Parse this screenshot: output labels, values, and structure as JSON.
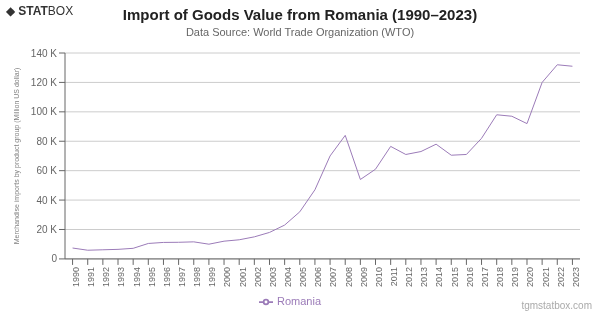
{
  "chart_data": {
    "type": "line",
    "title": "Import of Goods Value from Romania (1990–2023)",
    "subtitle": "Data Source: World Trade Organization (WTO)",
    "ylabel": "Merchandise imports by product group (Million US dollar)",
    "annotations": [
      "tgmstatbox.com",
      "◆",
      "STAT",
      "BOX"
    ],
    "x": [
      1990,
      1991,
      1992,
      1993,
      1994,
      1995,
      1996,
      1997,
      1998,
      1999,
      2000,
      2001,
      2002,
      2003,
      2004,
      2005,
      2006,
      2007,
      2008,
      2009,
      2010,
      2011,
      2012,
      2013,
      2014,
      2015,
      2016,
      2017,
      2018,
      2019,
      2020,
      2021,
      2022,
      2023
    ],
    "series": [
      {
        "name": "Romania",
        "color": "#9b7bb8",
        "values": [
          7400,
          5900,
          6200,
          6500,
          7200,
          10500,
          11200,
          11300,
          11600,
          10000,
          12050,
          13000,
          15000,
          18000,
          23000,
          32000,
          47000,
          70000,
          84000,
          54000,
          61000,
          76500,
          71000,
          73000,
          78000,
          70500,
          71000,
          82000,
          98000,
          97000,
          92000,
          120000,
          132000,
          131000
        ]
      }
    ],
    "xlim": [
      1989.5,
      2023.5
    ],
    "xticks": [
      1990,
      1991,
      1992,
      1993,
      1994,
      1995,
      1996,
      1997,
      1998,
      1999,
      2000,
      2001,
      2002,
      2003,
      2004,
      2005,
      2006,
      2007,
      2008,
      2009,
      2010,
      2011,
      2012,
      2013,
      2014,
      2015,
      2016,
      2017,
      2018,
      2019,
      2020,
      2021,
      2022,
      2023
    ],
    "ylim": [
      0,
      140000
    ],
    "yticks": [
      0,
      {
        "value": 20000,
        "label": "20 K"
      },
      {
        "value": 40000,
        "label": "40 K"
      },
      {
        "value": 60000,
        "label": "60 K"
      },
      {
        "value": 80000,
        "label": "80 K"
      },
      {
        "value": 100000,
        "label": "100 K"
      },
      {
        "value": 120000,
        "label": "120 K"
      },
      {
        "value": 140000,
        "label": "140 K"
      }
    ],
    "grid": true,
    "legend": "bottom"
  }
}
